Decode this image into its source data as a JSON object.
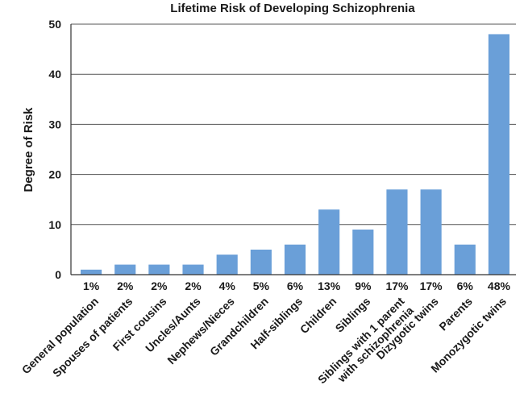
{
  "chart_data": {
    "type": "bar",
    "title": "Lifetime Risk of Developing Schizophrenia",
    "xlabel": "",
    "ylabel": "Degree of Risk",
    "ylim": [
      0,
      50
    ],
    "yticks": [
      0,
      10,
      20,
      30,
      40,
      50
    ],
    "grid": true,
    "bar_color": "#6a9fd8",
    "categories": [
      "General population",
      "Spouses of patients",
      "First cousins",
      "Uncles/Aunts",
      "Nephews/Nieces",
      "Grandchildren",
      "Half-siblings",
      "Children",
      "Siblings",
      "Siblings with 1 parent with schizophrenia",
      "Dizygotic twins",
      "Parents",
      "Monozygotic twins"
    ],
    "category_lines": [
      [
        "General population"
      ],
      [
        "Spouses of patients"
      ],
      [
        "First cousins"
      ],
      [
        "Uncles/Aunts"
      ],
      [
        "Nephews/Nieces"
      ],
      [
        "Grandchildren"
      ],
      [
        "Half-siblings"
      ],
      [
        "Children"
      ],
      [
        "Siblings"
      ],
      [
        "Siblings with 1 parent",
        "with schizophrenia"
      ],
      [
        "Dizygotic twins"
      ],
      [
        "Parents"
      ],
      [
        "Monozygotic twins"
      ]
    ],
    "values": [
      1,
      2,
      2,
      2,
      4,
      5,
      6,
      13,
      9,
      17,
      17,
      6,
      48
    ],
    "data_labels": [
      "1%",
      "2%",
      "2%",
      "2%",
      "4%",
      "5%",
      "6%",
      "13%",
      "9%",
      "17%",
      "17%",
      "6%",
      "48%"
    ]
  }
}
